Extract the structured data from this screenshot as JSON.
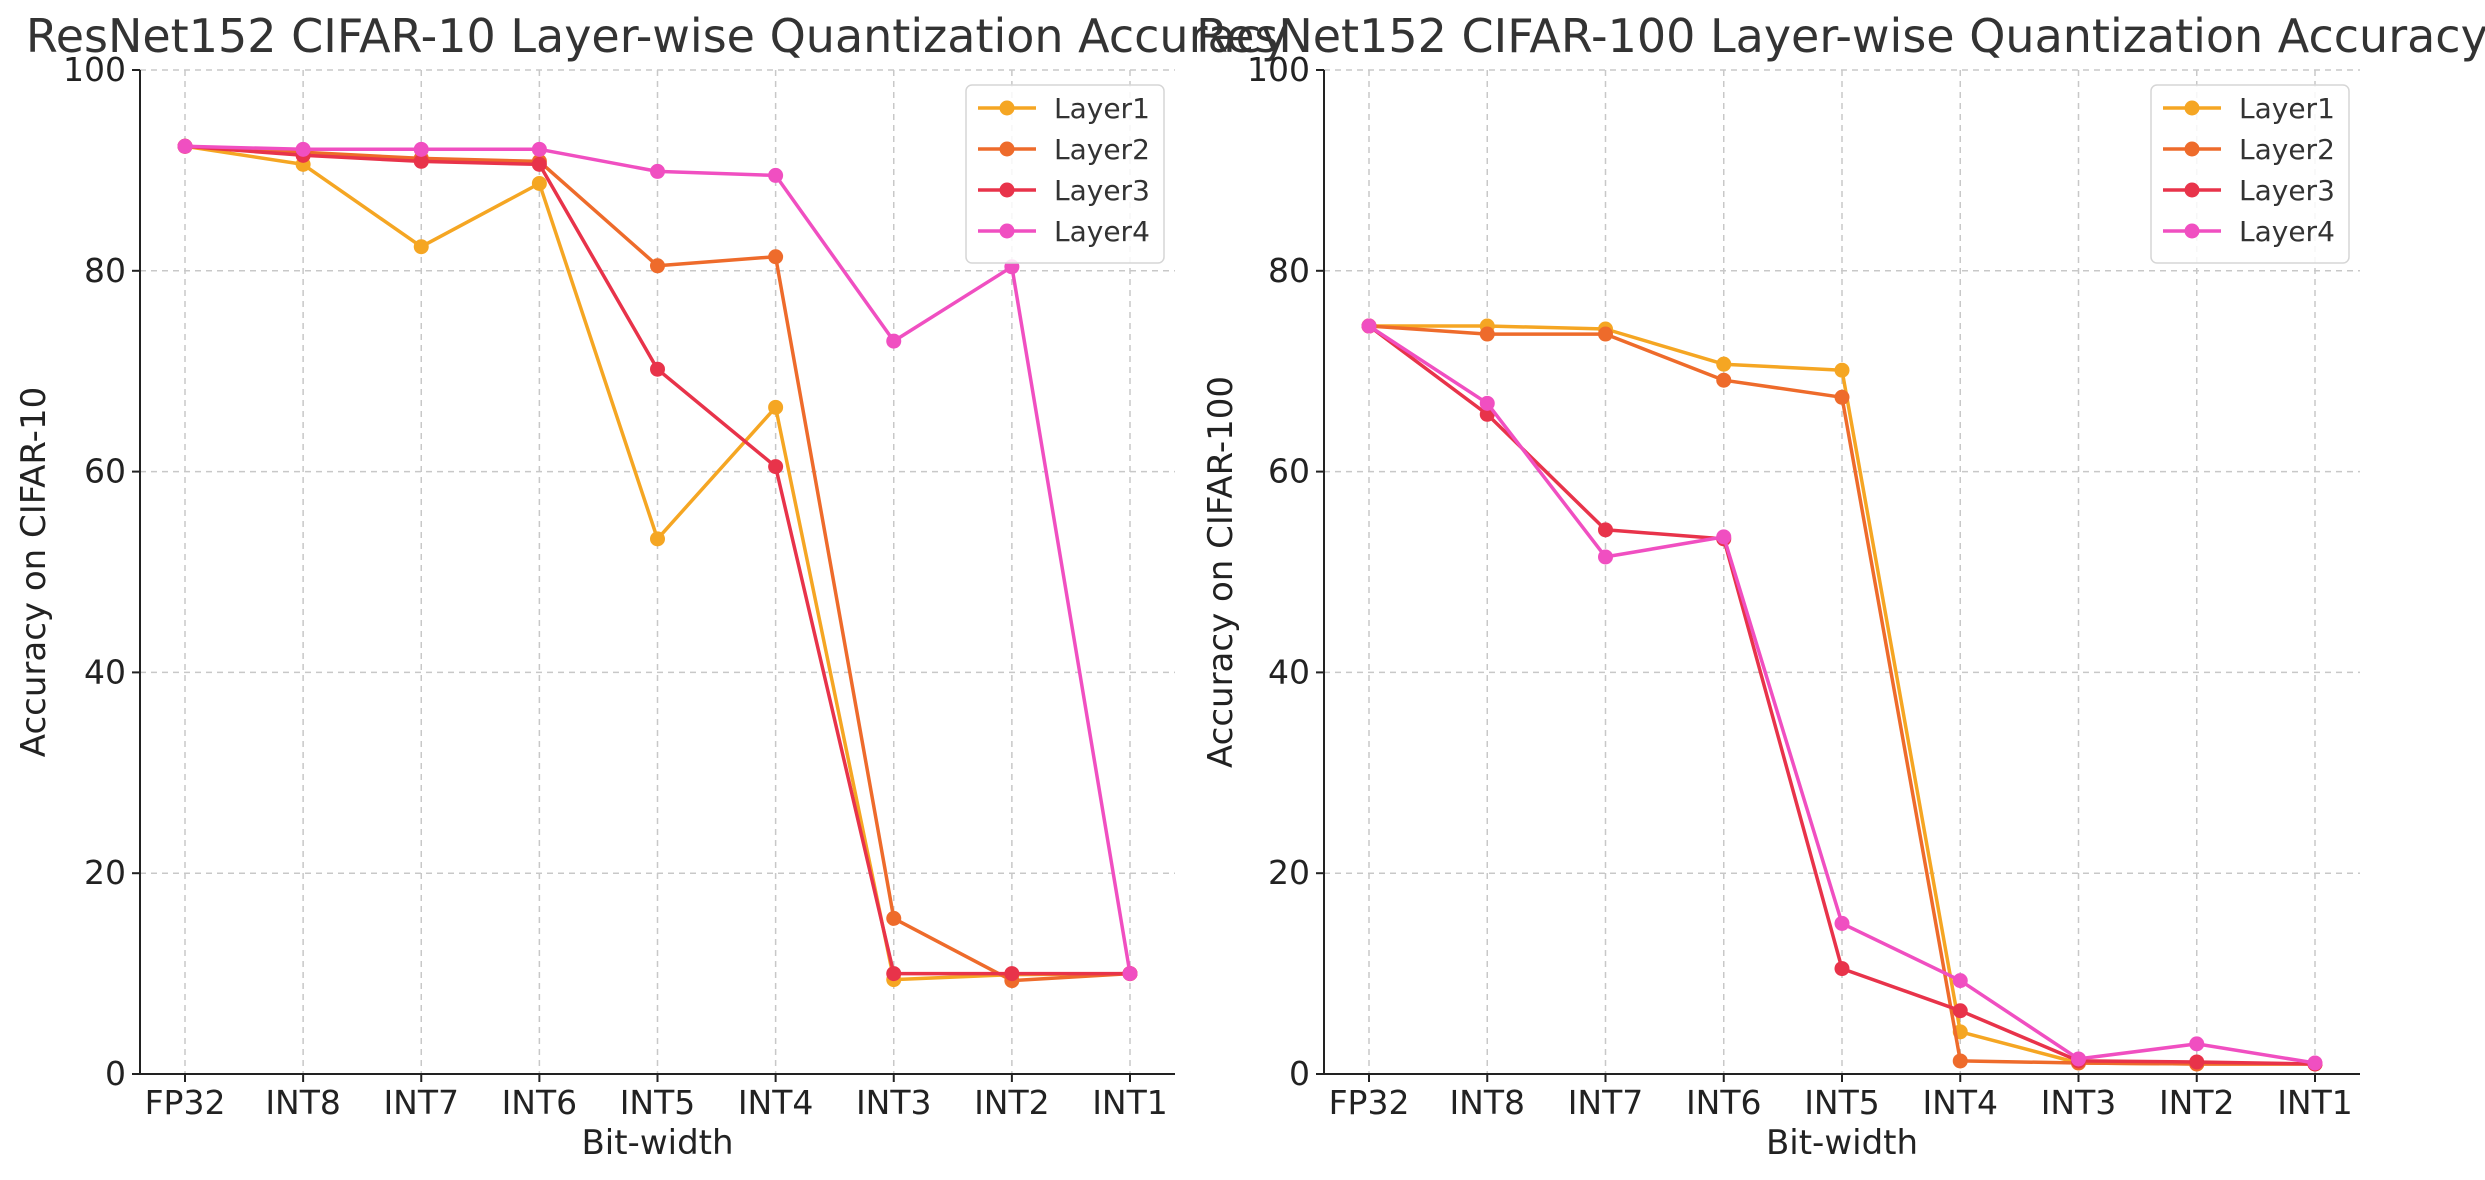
{
  "chart_data": [
    {
      "type": "line",
      "title": "ResNet152 CIFAR-10 Layer-wise Quantization Accuracy",
      "xlabel": "Bit-width",
      "ylabel": "Accuracy on CIFAR-10",
      "categories": [
        "FP32",
        "INT8",
        "INT7",
        "INT6",
        "INT5",
        "INT4",
        "INT3",
        "INT2",
        "INT1"
      ],
      "ylim": [
        0,
        100
      ],
      "yticks": [
        0,
        20,
        40,
        60,
        80,
        100
      ],
      "grid": true,
      "legend_position": "top-right",
      "series": [
        {
          "name": "Layer1",
          "color": "#f5a623",
          "values": [
            92.4,
            90.6,
            82.4,
            88.7,
            53.3,
            66.4,
            9.4,
            9.9,
            10.0
          ]
        },
        {
          "name": "Layer2",
          "color": "#ee6b2b",
          "values": [
            92.4,
            91.8,
            91.2,
            90.9,
            80.5,
            81.4,
            15.5,
            9.3,
            10.0
          ]
        },
        {
          "name": "Layer3",
          "color": "#e8334a",
          "values": [
            92.4,
            91.5,
            90.9,
            90.6,
            70.2,
            60.5,
            10.0,
            10.0,
            10.0
          ]
        },
        {
          "name": "Layer4",
          "color": "#f04fc1",
          "values": [
            92.4,
            92.1,
            92.1,
            92.1,
            89.9,
            89.5,
            73.0,
            80.4,
            10.0
          ]
        }
      ]
    },
    {
      "type": "line",
      "title": "ResNet152 CIFAR-100 Layer-wise Quantization Accuracy",
      "xlabel": "Bit-width",
      "ylabel": "Accuracy on CIFAR-100",
      "categories": [
        "FP32",
        "INT8",
        "INT7",
        "INT6",
        "INT5",
        "INT4",
        "INT3",
        "INT2",
        "INT1"
      ],
      "ylim": [
        0,
        100
      ],
      "yticks": [
        0,
        20,
        40,
        60,
        80,
        100
      ],
      "grid": true,
      "legend_position": "top-right",
      "series": [
        {
          "name": "Layer1",
          "color": "#f5a623",
          "values": [
            74.5,
            74.5,
            74.2,
            70.7,
            70.1,
            4.2,
            1.1,
            1.0,
            1.0
          ]
        },
        {
          "name": "Layer2",
          "color": "#ee6b2b",
          "values": [
            74.5,
            73.7,
            73.7,
            69.1,
            67.4,
            1.3,
            1.1,
            1.0,
            1.0
          ]
        },
        {
          "name": "Layer3",
          "color": "#e8334a",
          "values": [
            74.5,
            65.7,
            54.2,
            53.3,
            10.5,
            6.3,
            1.3,
            1.2,
            1.0
          ]
        },
        {
          "name": "Layer4",
          "color": "#f04fc1",
          "values": [
            74.5,
            66.8,
            51.5,
            53.5,
            15.0,
            9.3,
            1.5,
            3.0,
            1.1
          ]
        }
      ]
    }
  ]
}
